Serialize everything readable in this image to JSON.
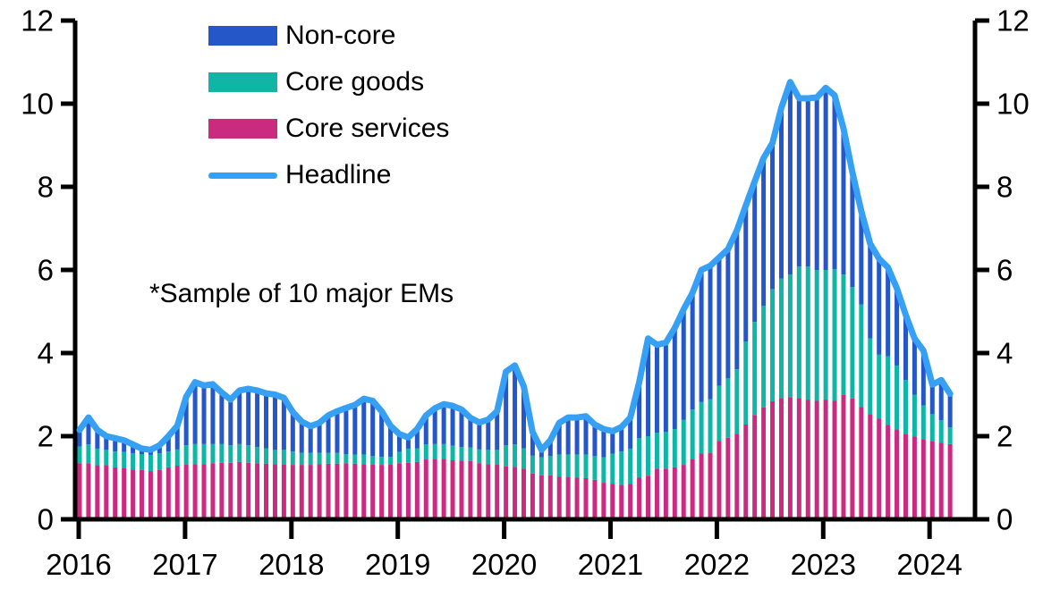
{
  "annotation": "*Sample of 10 major EMs",
  "legend": {
    "items": [
      {
        "label": "Non-core",
        "color": "#2557c9",
        "swatch": "box"
      },
      {
        "label": "Core goods",
        "color": "#10b5a5",
        "swatch": "box"
      },
      {
        "label": "Core services",
        "color": "#cb2b7e",
        "swatch": "box"
      },
      {
        "label": "Headline",
        "color": "#36a0f5",
        "swatch": "line"
      }
    ]
  },
  "axes": {
    "y_ticks": [
      0,
      2,
      4,
      6,
      8,
      10,
      12
    ],
    "x_labels": [
      "2016",
      "2017",
      "2018",
      "2019",
      "2020",
      "2021",
      "2022",
      "2023",
      "2024"
    ],
    "ylim": [
      0,
      12
    ],
    "grid": "off",
    "y_axis_sides": "both"
  },
  "chart_data": {
    "type": "bar",
    "subtype": "stacked-monthly-bars-with-line",
    "x_unit": "month",
    "start": "2016-01",
    "end": "2024-03",
    "ylim": [
      0,
      12
    ],
    "legend_position": "top-left",
    "series": [
      {
        "name": "Core services",
        "color": "#cb2b7e",
        "values": [
          1.35,
          1.35,
          1.3,
          1.3,
          1.25,
          1.24,
          1.2,
          1.19,
          1.16,
          1.19,
          1.25,
          1.29,
          1.32,
          1.33,
          1.33,
          1.35,
          1.36,
          1.36,
          1.38,
          1.36,
          1.35,
          1.34,
          1.33,
          1.32,
          1.31,
          1.31,
          1.31,
          1.33,
          1.34,
          1.34,
          1.35,
          1.34,
          1.33,
          1.32,
          1.31,
          1.32,
          1.35,
          1.36,
          1.38,
          1.44,
          1.45,
          1.45,
          1.42,
          1.41,
          1.4,
          1.35,
          1.33,
          1.32,
          1.27,
          1.26,
          1.22,
          1.1,
          1.06,
          1.06,
          1.03,
          1.02,
          1.0,
          0.99,
          0.95,
          0.88,
          0.85,
          0.83,
          0.85,
          1.0,
          1.05,
          1.22,
          1.22,
          1.25,
          1.31,
          1.45,
          1.58,
          1.6,
          1.89,
          1.96,
          2.06,
          2.28,
          2.51,
          2.69,
          2.84,
          2.92,
          2.94,
          2.92,
          2.88,
          2.85,
          2.88,
          2.85,
          2.99,
          2.91,
          2.7,
          2.53,
          2.42,
          2.27,
          2.16,
          2.06,
          1.99,
          1.93,
          1.88,
          1.84,
          1.81
        ]
      },
      {
        "name": "Core goods",
        "color": "#10b5a5",
        "values": [
          0.4,
          0.45,
          0.4,
          0.37,
          0.38,
          0.38,
          0.39,
          0.38,
          0.39,
          0.4,
          0.38,
          0.39,
          0.46,
          0.48,
          0.48,
          0.46,
          0.45,
          0.42,
          0.43,
          0.42,
          0.39,
          0.37,
          0.34,
          0.35,
          0.32,
          0.29,
          0.29,
          0.27,
          0.26,
          0.26,
          0.22,
          0.22,
          0.23,
          0.2,
          0.19,
          0.18,
          0.27,
          0.34,
          0.33,
          0.36,
          0.36,
          0.36,
          0.35,
          0.33,
          0.33,
          0.33,
          0.34,
          0.35,
          0.51,
          0.54,
          0.49,
          0.43,
          0.43,
          0.46,
          0.53,
          0.54,
          0.56,
          0.57,
          0.57,
          0.61,
          0.73,
          0.8,
          0.85,
          0.95,
          0.95,
          0.86,
          0.88,
          0.92,
          1.08,
          1.19,
          1.24,
          1.29,
          1.32,
          1.43,
          1.55,
          2.0,
          2.24,
          2.45,
          2.7,
          2.87,
          2.95,
          3.16,
          3.2,
          3.15,
          3.12,
          3.17,
          2.9,
          2.68,
          2.47,
          1.82,
          1.54,
          1.65,
          1.54,
          1.29,
          1.01,
          0.81,
          0.65,
          0.54,
          0.4
        ]
      },
      {
        "name": "Non-core",
        "color": "#2557c9",
        "values": [
          0.4,
          0.65,
          0.45,
          0.33,
          0.32,
          0.28,
          0.21,
          0.13,
          0.12,
          0.19,
          0.37,
          0.57,
          1.17,
          1.49,
          1.41,
          1.44,
          1.24,
          1.1,
          1.29,
          1.36,
          1.36,
          1.32,
          1.33,
          1.25,
          0.95,
          0.75,
          0.64,
          0.72,
          0.9,
          1.0,
          1.11,
          1.19,
          1.34,
          1.33,
          1.1,
          0.75,
          0.43,
          0.27,
          0.46,
          0.7,
          0.86,
          0.96,
          0.96,
          0.9,
          0.71,
          0.65,
          0.73,
          0.93,
          1.77,
          1.9,
          1.49,
          0.57,
          0.18,
          0.38,
          0.76,
          0.89,
          0.89,
          0.92,
          0.76,
          0.68,
          0.54,
          0.59,
          0.75,
          1.35,
          2.35,
          2.12,
          2.15,
          2.43,
          2.66,
          2.81,
          3.18,
          3.21,
          3.09,
          3.11,
          3.34,
          3.27,
          3.38,
          3.55,
          3.51,
          4.11,
          4.63,
          4.05,
          4.05,
          4.15,
          4.38,
          4.18,
          3.51,
          2.76,
          2.25,
          2.28,
          2.31,
          2.14,
          1.86,
          1.57,
          1.35,
          1.32,
          0.71,
          0.97,
          0.81
        ]
      }
    ],
    "line": {
      "name": "Headline",
      "color": "#36a0f5",
      "values": [
        2.15,
        2.45,
        2.15,
        2.0,
        1.95,
        1.9,
        1.8,
        1.7,
        1.67,
        1.78,
        2.0,
        2.25,
        2.95,
        3.3,
        3.22,
        3.25,
        3.05,
        2.88,
        3.1,
        3.14,
        3.1,
        3.03,
        3.0,
        2.92,
        2.58,
        2.35,
        2.24,
        2.32,
        2.5,
        2.6,
        2.68,
        2.75,
        2.9,
        2.85,
        2.6,
        2.25,
        2.05,
        1.97,
        2.17,
        2.5,
        2.67,
        2.77,
        2.73,
        2.64,
        2.44,
        2.33,
        2.4,
        2.6,
        3.55,
        3.7,
        3.2,
        2.1,
        1.67,
        1.9,
        2.32,
        2.45,
        2.45,
        2.48,
        2.28,
        2.17,
        2.12,
        2.22,
        2.45,
        3.3,
        4.35,
        4.2,
        4.25,
        4.6,
        5.05,
        5.45,
        6.0,
        6.1,
        6.3,
        6.5,
        6.95,
        7.55,
        8.13,
        8.69,
        9.05,
        9.9,
        10.52,
        10.13,
        10.13,
        10.15,
        10.38,
        10.2,
        9.4,
        8.35,
        7.42,
        6.63,
        6.27,
        6.06,
        5.56,
        4.92,
        4.35,
        4.06,
        3.24,
        3.35,
        3.02
      ]
    }
  }
}
